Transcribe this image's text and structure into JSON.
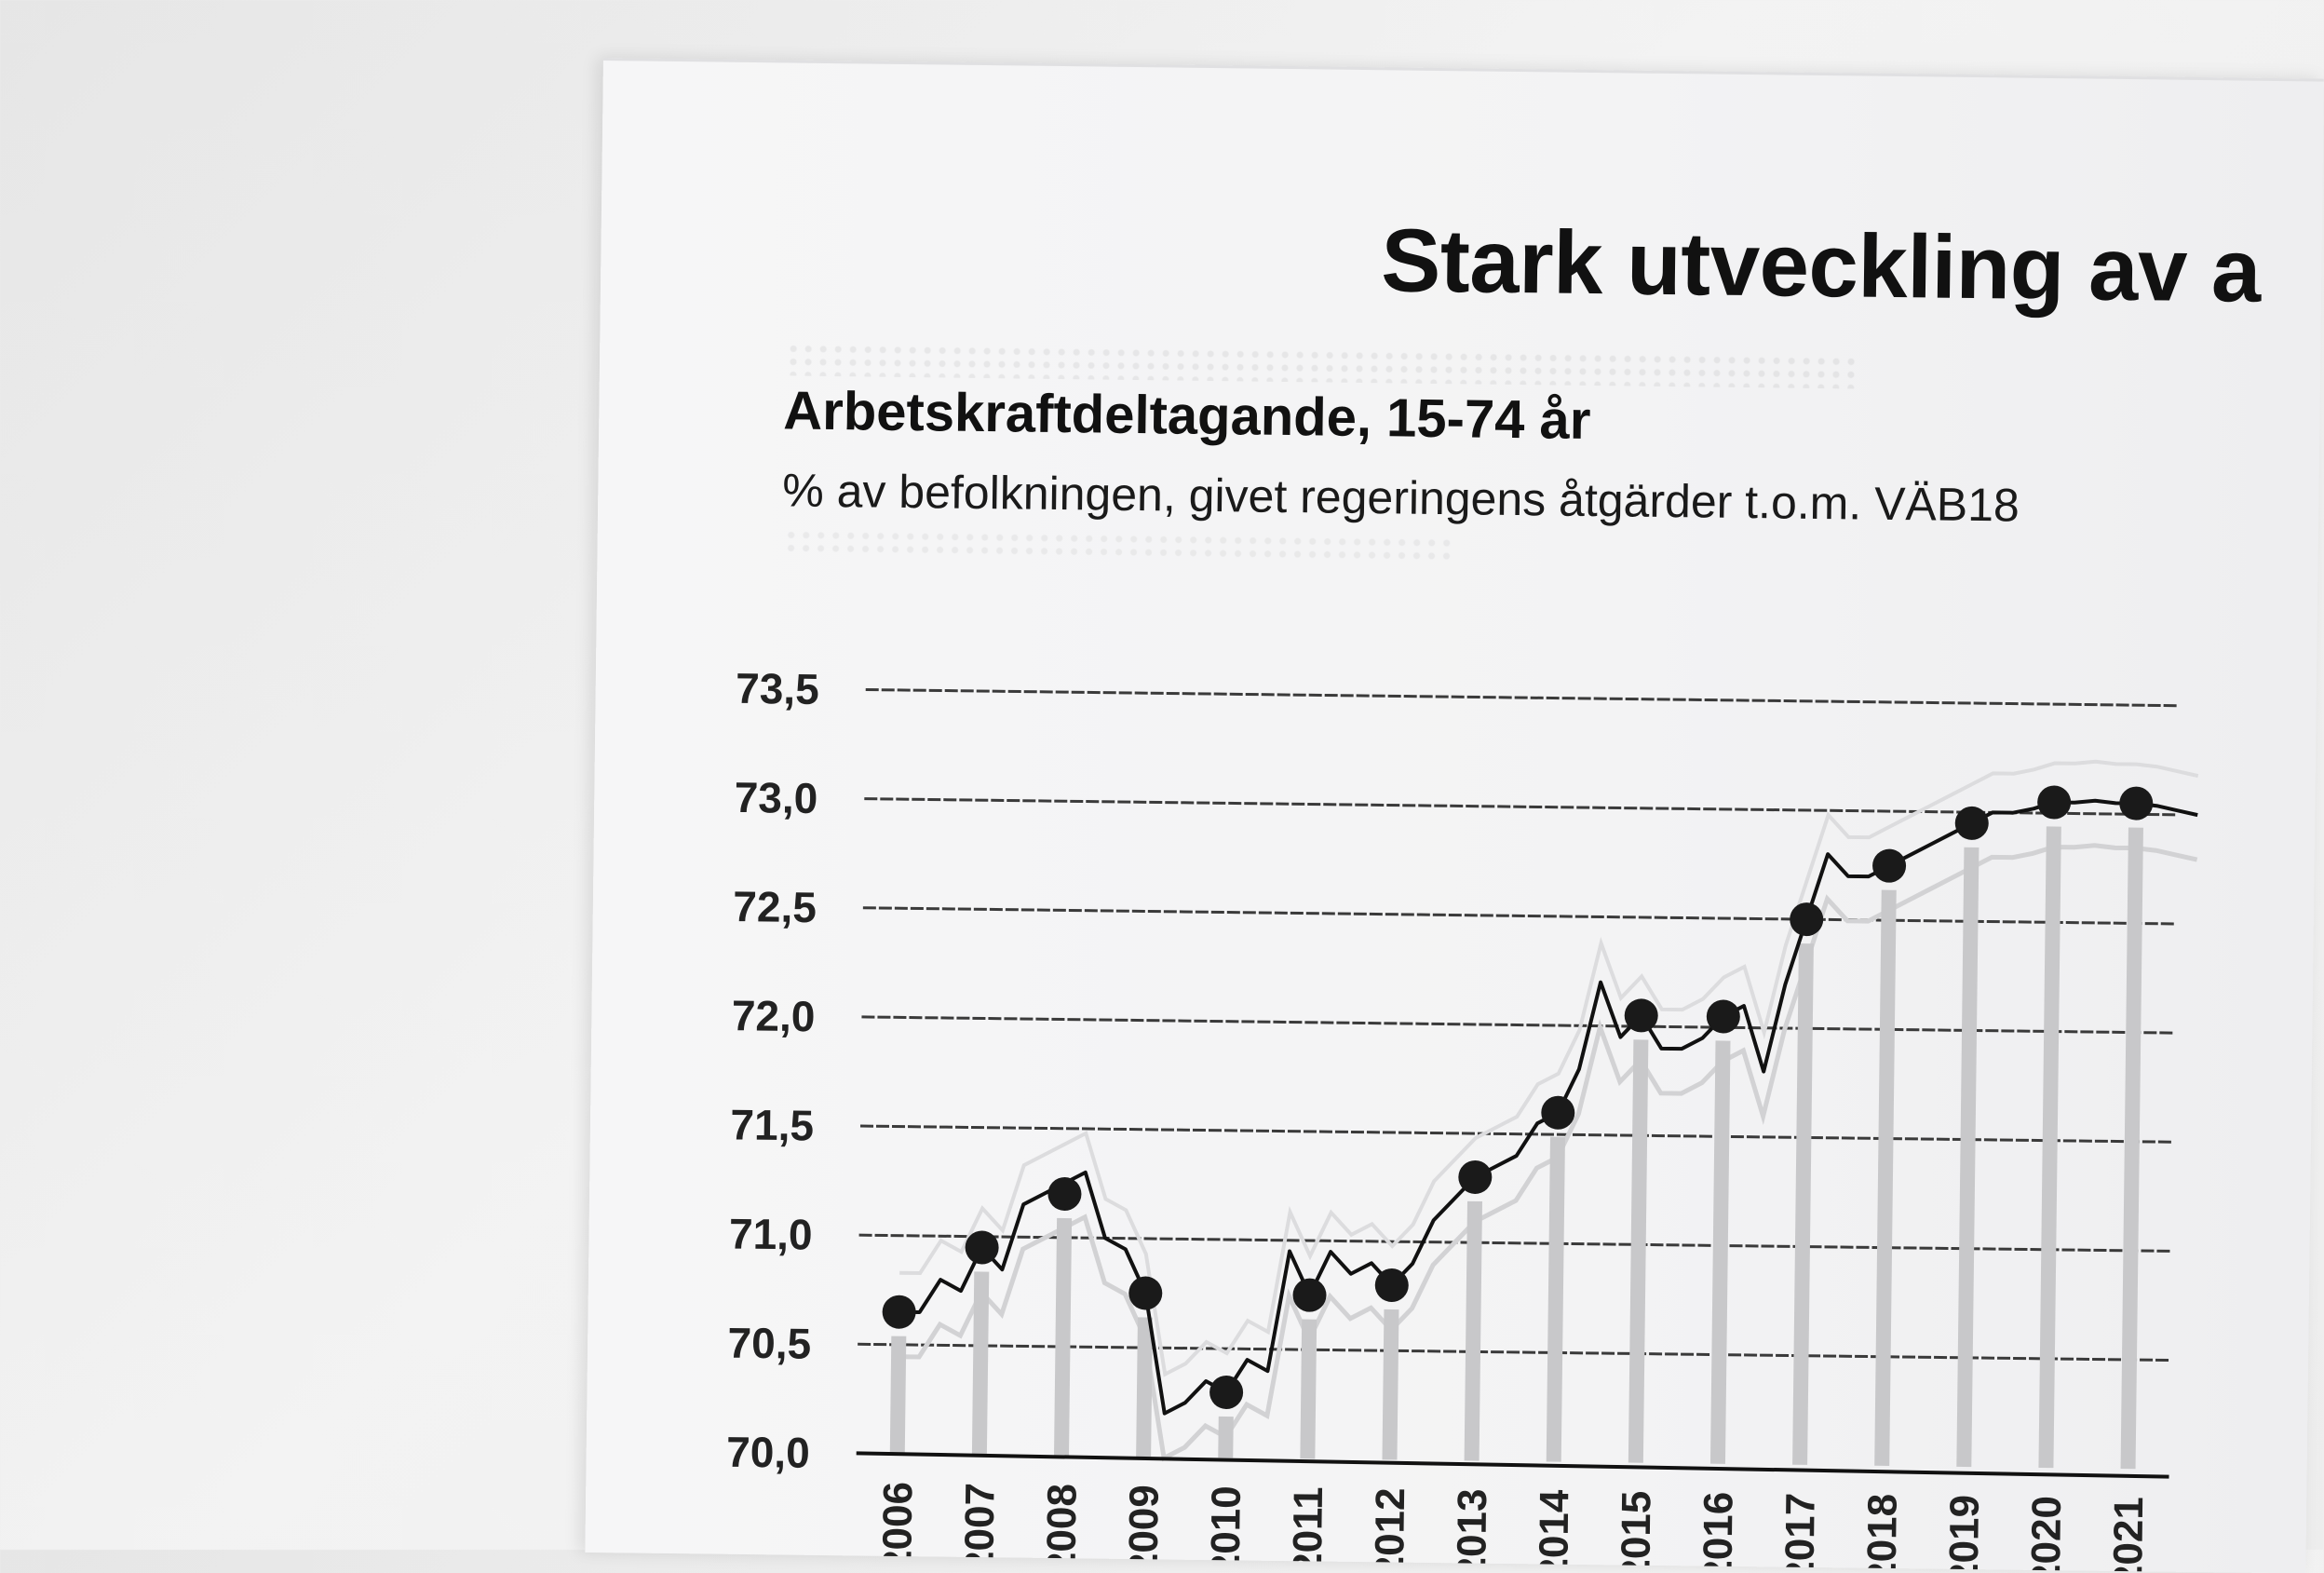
{
  "page": {
    "title": "Stark utveckling av a"
  },
  "chart_data": {
    "type": "line",
    "title": "Arbetskraftdeltagande, 15-74 år",
    "subtitle": "% av befolkningen, givet regeringens åtgärder t.o.m. VÄB18",
    "xlabel": "",
    "ylabel": "",
    "ylim": [
      70.0,
      73.5
    ],
    "grid": true,
    "legend": "none",
    "y_ticks": [
      "73,5",
      "73,0",
      "72,5",
      "72,0",
      "71,5",
      "71,0",
      "70,5",
      "70,0"
    ],
    "categories": [
      "2006",
      "2007",
      "2008",
      "2009",
      "2010",
      "2011",
      "2012",
      "2013",
      "2014",
      "2015",
      "2016",
      "2017",
      "2018",
      "2019",
      "2020",
      "2021"
    ],
    "series": [
      {
        "name": "",
        "kind": "annual",
        "values": [
          70.65,
          70.95,
          71.2,
          70.75,
          70.3,
          70.75,
          70.8,
          71.3,
          71.6,
          72.05,
          72.05,
          72.5,
          72.75,
          72.95,
          73.05,
          73.05
        ]
      },
      {
        "name": "",
        "kind": "quarterly",
        "x": [
          2006.0,
          2006.25,
          2006.5,
          2006.75,
          2007.0,
          2007.25,
          2007.5,
          2007.75,
          2008.0,
          2008.25,
          2008.5,
          2008.75,
          2009.0,
          2009.25,
          2009.5,
          2009.75,
          2010.0,
          2010.25,
          2010.5,
          2010.75,
          2011.0,
          2011.25,
          2011.5,
          2011.75,
          2012.0,
          2012.25,
          2012.5,
          2012.75,
          2013.0,
          2013.25,
          2013.5,
          2013.75,
          2014.0,
          2014.25,
          2014.5,
          2014.75,
          2015.0,
          2015.25,
          2015.5,
          2015.75,
          2016.0,
          2016.25,
          2016.5,
          2016.75,
          2017.0,
          2017.25,
          2017.5,
          2017.75,
          2018.0,
          2018.25,
          2018.5,
          2018.75,
          2019.0,
          2019.25,
          2019.5,
          2019.75,
          2020.0,
          2020.25,
          2020.5,
          2020.75,
          2021.0,
          2021.25,
          2021.5,
          2021.75
        ],
        "values": [
          70.65,
          70.65,
          70.8,
          70.75,
          70.95,
          70.85,
          71.15,
          71.2,
          71.25,
          71.3,
          71.0,
          70.95,
          70.75,
          70.2,
          70.25,
          70.35,
          70.3,
          70.45,
          70.4,
          70.95,
          70.75,
          70.95,
          70.85,
          70.9,
          70.8,
          70.9,
          71.1,
          71.2,
          71.3,
          71.35,
          71.4,
          71.55,
          71.6,
          71.8,
          72.2,
          71.95,
          72.05,
          71.9,
          71.9,
          71.95,
          72.05,
          72.1,
          71.8,
          72.2,
          72.5,
          72.8,
          72.7,
          72.7,
          72.75,
          72.8,
          72.85,
          72.9,
          72.95,
          73.0,
          73.0,
          73.02,
          73.05,
          73.05,
          73.06,
          73.05,
          73.05,
          73.04,
          73.02,
          73.0
        ]
      }
    ]
  }
}
